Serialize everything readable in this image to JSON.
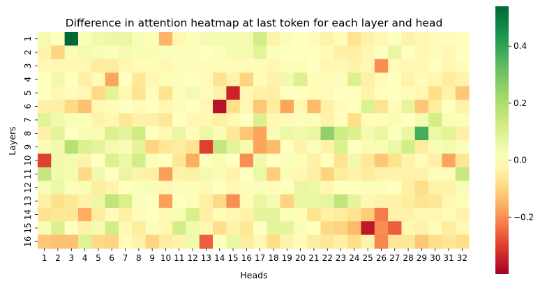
{
  "chart_data": {
    "type": "heatmap",
    "title": "Difference in attention heatmap at last token for each layer and head",
    "xlabel": "Heads",
    "ylabel": "Layers",
    "x_categories": [
      "1",
      "2",
      "3",
      "4",
      "5",
      "6",
      "7",
      "8",
      "9",
      "10",
      "11",
      "12",
      "13",
      "14",
      "15",
      "16",
      "17",
      "18",
      "19",
      "20",
      "21",
      "22",
      "23",
      "24",
      "25",
      "26",
      "27",
      "28",
      "29",
      "30",
      "31",
      "32"
    ],
    "y_categories": [
      "1",
      "2",
      "3",
      "4",
      "5",
      "6",
      "7",
      "8",
      "9",
      "10",
      "11",
      "12",
      "13",
      "14",
      "15",
      "16"
    ],
    "colorscale": "RdYlGn",
    "vmin": -0.4,
    "vmax": 0.54,
    "colorbar_ticks": [
      "0.4",
      "0.2",
      "0.0",
      "−0.2"
    ],
    "colorbar_tick_values": [
      0.4,
      0.2,
      0.0,
      -0.2
    ],
    "values": [
      [
        0.03,
        0.0,
        0.54,
        0.01,
        0.04,
        0.05,
        0.06,
        0.02,
        0.01,
        -0.15,
        -0.02,
        0.01,
        0.03,
        0.03,
        0.03,
        0.03,
        0.12,
        -0.03,
        0.01,
        0.0,
        -0.01,
        -0.03,
        -0.01,
        -0.07,
        -0.03,
        -0.02,
        0.0,
        -0.03,
        -0.02,
        -0.01,
        -0.01,
        0.0
      ],
      [
        -0.03,
        -0.1,
        0.02,
        0.03,
        0.02,
        0.01,
        0.03,
        0.02,
        0.02,
        0.01,
        0.01,
        0.01,
        0.0,
        0.01,
        0.03,
        0.03,
        0.08,
        0.01,
        0.0,
        0.0,
        0.0,
        -0.01,
        -0.04,
        -0.04,
        -0.02,
        0.0,
        0.06,
        0.0,
        -0.02,
        -0.01,
        -0.02,
        0.0
      ],
      [
        -0.02,
        -0.02,
        -0.02,
        -0.02,
        -0.05,
        -0.05,
        -0.02,
        -0.01,
        -0.01,
        -0.02,
        -0.01,
        -0.01,
        -0.01,
        -0.01,
        -0.01,
        -0.01,
        -0.01,
        -0.02,
        -0.01,
        -0.01,
        0.0,
        -0.02,
        -0.02,
        -0.03,
        -0.02,
        -0.2,
        -0.01,
        -0.02,
        -0.02,
        0.0,
        -0.02,
        -0.01
      ],
      [
        0.0,
        0.04,
        0.0,
        -0.04,
        -0.01,
        -0.17,
        0.0,
        -0.06,
        -0.02,
        -0.01,
        0.01,
        0.0,
        -0.01,
        -0.07,
        -0.03,
        -0.1,
        -0.01,
        -0.03,
        0.04,
        0.1,
        -0.01,
        -0.01,
        0.01,
        0.1,
        -0.04,
        -0.01,
        0.0,
        -0.03,
        -0.01,
        -0.02,
        -0.05,
        -0.03
      ],
      [
        0.0,
        -0.02,
        -0.01,
        -0.02,
        -0.09,
        0.08,
        -0.02,
        -0.07,
        -0.01,
        -0.07,
        0.01,
        0.03,
        -0.01,
        -0.03,
        -0.34,
        -0.02,
        -0.03,
        -0.04,
        0.0,
        0.0,
        -0.01,
        -0.01,
        0.0,
        0.0,
        -0.03,
        0.0,
        0.0,
        -0.01,
        -0.02,
        -0.08,
        -0.03,
        -0.12
      ],
      [
        -0.04,
        -0.04,
        -0.09,
        -0.13,
        -0.02,
        -0.01,
        0.0,
        -0.01,
        0.0,
        -0.02,
        -0.01,
        0.0,
        -0.02,
        -0.37,
        -0.08,
        -0.02,
        -0.12,
        -0.05,
        -0.17,
        -0.02,
        -0.14,
        -0.04,
        -0.01,
        0.0,
        0.1,
        -0.07,
        -0.01,
        0.07,
        -0.12,
        -0.05,
        0.0,
        -0.03
      ],
      [
        0.08,
        0.04,
        0.02,
        0.01,
        -0.03,
        -0.02,
        -0.06,
        -0.03,
        -0.04,
        -0.06,
        0.0,
        -0.02,
        -0.02,
        -0.04,
        -0.02,
        0.0,
        0.1,
        -0.02,
        -0.01,
        0.01,
        0.01,
        -0.03,
        0.0,
        -0.08,
        -0.01,
        -0.01,
        0.02,
        0.0,
        0.03,
        0.12,
        0.02,
        0.01
      ],
      [
        -0.04,
        0.08,
        0.0,
        0.02,
        0.02,
        0.1,
        0.07,
        0.13,
        0.0,
        -0.02,
        0.06,
        -0.01,
        0.05,
        0.02,
        -0.06,
        -0.12,
        -0.17,
        0.02,
        0.05,
        0.04,
        0.06,
        0.25,
        0.13,
        0.1,
        0.03,
        0.06,
        0.0,
        0.06,
        0.37,
        0.05,
        0.08,
        -0.04
      ],
      [
        0.02,
        0.04,
        0.18,
        0.1,
        0.08,
        0.03,
        0.02,
        0.07,
        -0.1,
        -0.06,
        -0.05,
        -0.07,
        -0.3,
        0.15,
        0.08,
        0.03,
        -0.17,
        -0.14,
        0.0,
        -0.03,
        0.01,
        -0.03,
        0.1,
        0.0,
        0.02,
        0.02,
        0.05,
        0.12,
        -0.05,
        0.02,
        0.03,
        0.01
      ],
      [
        -0.3,
        0.04,
        0.03,
        -0.03,
        0.0,
        0.1,
        0.05,
        0.12,
        0.01,
        0.0,
        -0.06,
        -0.16,
        0.0,
        0.02,
        0.0,
        -0.2,
        0.04,
        0.0,
        0.01,
        0.01,
        -0.04,
        0.0,
        -0.07,
        0.04,
        -0.06,
        -0.12,
        -0.07,
        -0.03,
        -0.01,
        -0.04,
        -0.17,
        -0.06
      ],
      [
        0.15,
        0.04,
        0.03,
        -0.09,
        0.04,
        0.0,
        0.06,
        -0.03,
        -0.04,
        -0.18,
        -0.03,
        -0.04,
        0.03,
        0.02,
        -0.03,
        0.0,
        0.05,
        -0.11,
        0.02,
        -0.02,
        -0.04,
        -0.1,
        -0.05,
        -0.03,
        -0.05,
        -0.03,
        -0.03,
        -0.03,
        -0.03,
        -0.01,
        -0.01,
        0.14
      ],
      [
        0.02,
        0.05,
        0.01,
        0.02,
        -0.05,
        -0.03,
        0.0,
        0.01,
        0.02,
        -0.02,
        -0.01,
        0.01,
        -0.02,
        0.0,
        -0.02,
        -0.01,
        0.01,
        -0.01,
        0.0,
        0.06,
        0.05,
        -0.02,
        0.0,
        0.0,
        0.01,
        0.01,
        0.0,
        -0.04,
        -0.08,
        -0.03,
        -0.03,
        0.02
      ],
      [
        -0.04,
        -0.08,
        -0.06,
        -0.03,
        0.05,
        0.16,
        0.11,
        0.01,
        0.0,
        -0.18,
        0.0,
        -0.01,
        -0.04,
        -0.09,
        -0.2,
        -0.01,
        0.06,
        0.03,
        -0.1,
        0.06,
        0.06,
        0.07,
        0.16,
        0.07,
        -0.02,
        -0.03,
        -0.03,
        -0.05,
        -0.07,
        -0.06,
        -0.02,
        -0.01
      ],
      [
        -0.07,
        -0.06,
        -0.06,
        -0.16,
        -0.05,
        -0.01,
        -0.04,
        -0.01,
        0.0,
        -0.02,
        0.02,
        0.11,
        -0.04,
        -0.01,
        -0.02,
        -0.03,
        0.07,
        0.07,
        0.01,
        -0.01,
        -0.07,
        -0.04,
        -0.05,
        -0.07,
        -0.11,
        -0.22,
        -0.03,
        -0.03,
        -0.02,
        -0.02,
        -0.01,
        -0.03
      ],
      [
        0.02,
        0.1,
        0.0,
        -0.03,
        0.03,
        0.12,
        -0.02,
        -0.05,
        0.01,
        -0.02,
        0.12,
        0.04,
        -0.02,
        -0.08,
        -0.03,
        -0.06,
        0.0,
        0.07,
        0.07,
        0.02,
        0.0,
        -0.09,
        -0.1,
        -0.14,
        -0.36,
        -0.2,
        -0.26,
        -0.02,
        -0.03,
        -0.01,
        -0.05,
        -0.02
      ],
      [
        -0.12,
        -0.13,
        -0.13,
        0.09,
        -0.09,
        -0.1,
        -0.01,
        -0.03,
        -0.1,
        -0.05,
        -0.03,
        0.04,
        -0.26,
        0.0,
        0.06,
        -0.05,
        -0.02,
        -0.08,
        -0.03,
        -0.01,
        -0.05,
        -0.06,
        -0.04,
        -0.08,
        -0.03,
        -0.21,
        -0.06,
        -0.06,
        -0.12,
        -0.08,
        -0.06,
        -0.08
      ]
    ]
  }
}
